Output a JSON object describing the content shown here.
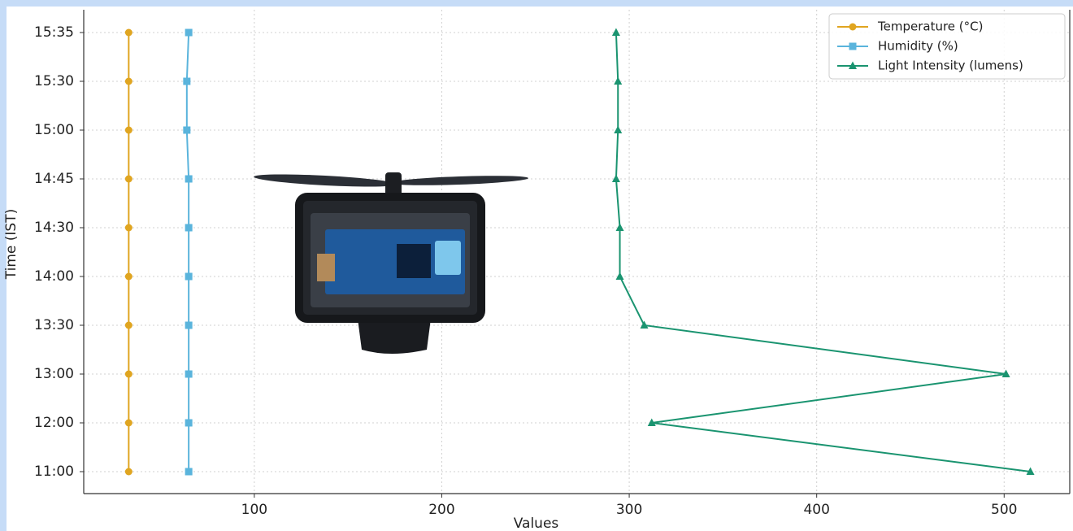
{
  "chart_data": {
    "type": "line",
    "x_label": "Values",
    "y_label": "Time (IST)",
    "categories": [
      "11:00",
      "12:00",
      "13:00",
      "13:30",
      "14:00",
      "14:30",
      "14:45",
      "15:00",
      "15:30",
      "15:35"
    ],
    "series": [
      {
        "name": "Temperature (°C)",
        "color": "#e0a520",
        "marker": "circle",
        "values": [
          33,
          33,
          33,
          33,
          33,
          33,
          33,
          33,
          33,
          33
        ]
      },
      {
        "name": "Humidity (%)",
        "color": "#5ab4dc",
        "marker": "square",
        "values": [
          65,
          65,
          65,
          65,
          65,
          65,
          65,
          64,
          64,
          65
        ]
      },
      {
        "name": "Light Intensity (lumens)",
        "color": "#1a9470",
        "marker": "triangle",
        "values": [
          514,
          312,
          501,
          308,
          295,
          295,
          293,
          294,
          294,
          293
        ]
      }
    ],
    "xlim": [
      9,
      535
    ],
    "xticks": [
      100,
      200,
      300,
      400,
      500
    ],
    "grid": true,
    "legend": "upper right"
  }
}
